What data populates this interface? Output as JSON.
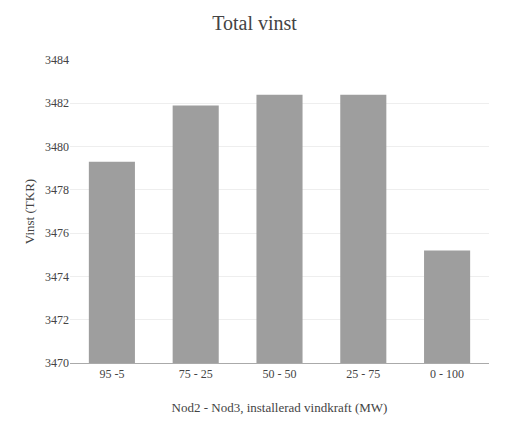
{
  "chart_data": {
    "type": "bar",
    "title": "Total vinst",
    "xlabel": "Nod2 - Nod3, installerad vindkraft (MW)",
    "ylabel": "Vinst (TKR)",
    "categories": [
      "95 -5",
      "75 - 25",
      "50 - 50",
      "25 - 75",
      "0 - 100"
    ],
    "values": [
      3479.3,
      3481.9,
      3482.4,
      3482.4,
      3475.2
    ],
    "color": "#9E9E9E",
    "ylim": [
      3470,
      3484
    ],
    "yticks": [
      3470,
      3472,
      3474,
      3476,
      3478,
      3480,
      3482,
      3484
    ],
    "grid": true
  }
}
